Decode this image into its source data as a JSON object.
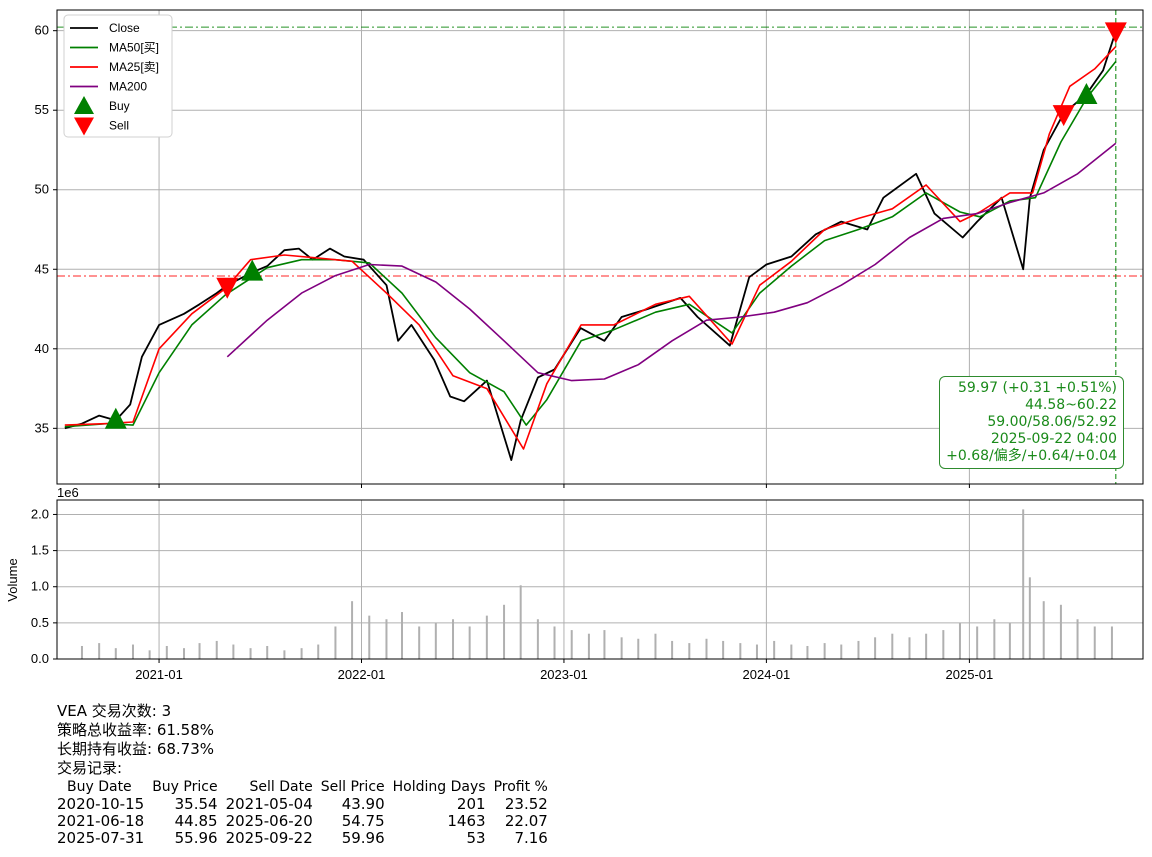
{
  "ticker_label": "VEA 交易次数: 3",
  "summary": {
    "strategy_return": "策略总收益率: 61.58%",
    "buy_hold_return": "长期持有收益: 68.73%",
    "trades_title": "交易记录:"
  },
  "trades_table": {
    "headers": [
      "Buy Date",
      "Buy Price",
      "Sell Date",
      "Sell Price",
      "Holding Days",
      "Profit %"
    ],
    "rows": [
      [
        "2020-10-15",
        "35.54",
        "2021-05-04",
        "43.90",
        "201",
        "23.52"
      ],
      [
        "2021-06-18",
        "44.85",
        "2025-06-20",
        "54.75",
        "1463",
        "22.07"
      ],
      [
        "2025-07-31",
        "55.96",
        "2025-09-22",
        "59.96",
        "53",
        "7.16"
      ]
    ]
  },
  "infobox": {
    "line1": "59.97 (+0.31 +0.51%)",
    "line2": "44.58~60.22",
    "line3": "59.00/58.06/52.92",
    "line4": "2025-09-22 04:00",
    "line5": "+0.68/偏多/+0.64/+0.04"
  },
  "colors": {
    "close": "#000000",
    "ma50": "#008000",
    "ma25": "#ff0000",
    "ma200": "#800080",
    "buy": "#008000",
    "sell": "#ff0000",
    "volume": "#b0b0b0",
    "grid": "#b0b0b0",
    "infobox": "#1a8a1a"
  },
  "chart_data": [
    {
      "type": "line",
      "x_axis": "date",
      "xlim": [
        "2020-07-01",
        "2025-11-10"
      ],
      "ylim": [
        31.5,
        61.3
      ],
      "yticks": [
        35,
        40,
        45,
        50,
        55,
        60
      ],
      "xtick_labels": [
        "2021-01",
        "2022-01",
        "2023-01",
        "2024-01",
        "2025-01"
      ],
      "grid": true,
      "legend": "top-left",
      "hlines": [
        {
          "y": 60.22,
          "color": "#008000",
          "style": "dashdot"
        },
        {
          "y": 44.58,
          "color": "#ff0000",
          "style": "dashdot"
        }
      ],
      "vline": {
        "x": "2025-09-22",
        "color": "#008000",
        "style": "dashed"
      },
      "series": [
        {
          "name": "Close",
          "x": [
            "2020-07-15",
            "2020-08-15",
            "2020-09-15",
            "2020-10-15",
            "2020-11-10",
            "2020-12-01",
            "2021-01-01",
            "2021-02-15",
            "2021-03-15",
            "2021-04-15",
            "2021-05-04",
            "2021-06-18",
            "2021-07-15",
            "2021-08-15",
            "2021-09-10",
            "2021-10-05",
            "2021-11-05",
            "2021-12-01",
            "2022-01-05",
            "2022-02-15",
            "2022-03-08",
            "2022-04-01",
            "2022-05-12",
            "2022-06-10",
            "2022-07-05",
            "2022-08-15",
            "2022-09-28",
            "2022-10-15",
            "2022-11-15",
            "2022-12-15",
            "2023-01-31",
            "2023-03-15",
            "2023-04-15",
            "2023-06-01",
            "2023-07-30",
            "2023-08-30",
            "2023-10-27",
            "2023-12-01",
            "2024-01-01",
            "2024-02-15",
            "2024-03-30",
            "2024-05-15",
            "2024-07-01",
            "2024-07-30",
            "2024-09-27",
            "2024-10-30",
            "2024-12-20",
            "2025-01-15",
            "2025-02-28",
            "2025-04-08",
            "2025-04-20",
            "2025-05-15",
            "2025-06-20",
            "2025-07-31",
            "2025-08-30",
            "2025-09-22"
          ],
          "values": [
            35.0,
            35.3,
            35.8,
            35.5,
            36.5,
            39.5,
            41.5,
            42.2,
            42.8,
            43.5,
            44.0,
            44.8,
            45.2,
            46.2,
            46.3,
            45.6,
            46.3,
            45.8,
            45.6,
            44.0,
            40.5,
            41.5,
            39.3,
            37.0,
            36.7,
            38.0,
            33.0,
            35.5,
            38.2,
            38.7,
            41.3,
            40.5,
            42.0,
            42.5,
            43.2,
            42.0,
            40.2,
            44.5,
            45.3,
            45.8,
            47.2,
            48.0,
            47.5,
            49.5,
            51.0,
            48.5,
            47.0,
            48.0,
            49.5,
            45.0,
            49.5,
            52.5,
            54.8,
            56.0,
            57.5,
            59.97
          ]
        },
        {
          "name": "MA50[买]",
          "x": [
            "2020-07-15",
            "2020-10-01",
            "2020-11-15",
            "2021-01-01",
            "2021-03-01",
            "2021-05-01",
            "2021-07-15",
            "2021-09-15",
            "2021-11-15",
            "2022-01-15",
            "2022-03-15",
            "2022-05-15",
            "2022-07-15",
            "2022-09-15",
            "2022-10-25",
            "2022-12-01",
            "2023-02-01",
            "2023-04-01",
            "2023-06-15",
            "2023-08-15",
            "2023-10-31",
            "2023-12-20",
            "2024-02-15",
            "2024-04-15",
            "2024-06-15",
            "2024-08-15",
            "2024-10-15",
            "2024-12-15",
            "2025-01-20",
            "2025-03-15",
            "2025-04-30",
            "2025-06-15",
            "2025-08-01",
            "2025-09-22"
          ],
          "values": [
            35.1,
            35.3,
            35.2,
            38.5,
            41.5,
            43.4,
            45.1,
            45.6,
            45.6,
            45.4,
            43.5,
            40.7,
            38.5,
            37.3,
            35.2,
            36.8,
            40.5,
            41.2,
            42.3,
            42.8,
            41.0,
            43.5,
            45.2,
            46.8,
            47.5,
            48.3,
            49.8,
            48.6,
            48.3,
            49.3,
            49.5,
            53.0,
            55.8,
            58.06
          ]
        },
        {
          "name": "MA25[卖]",
          "x": [
            "2020-07-15",
            "2020-10-01",
            "2020-11-15",
            "2021-01-01",
            "2021-03-01",
            "2021-05-01",
            "2021-06-15",
            "2021-08-15",
            "2021-10-15",
            "2021-12-15",
            "2022-02-15",
            "2022-04-15",
            "2022-06-15",
            "2022-08-15",
            "2022-10-20",
            "2022-12-01",
            "2023-02-01",
            "2023-04-01",
            "2023-06-15",
            "2023-08-15",
            "2023-10-31",
            "2023-12-20",
            "2024-02-15",
            "2024-04-15",
            "2024-06-15",
            "2024-08-15",
            "2024-10-15",
            "2024-12-15",
            "2025-01-20",
            "2025-03-15",
            "2025-04-25",
            "2025-05-25",
            "2025-07-01",
            "2025-08-15",
            "2025-09-22"
          ],
          "values": [
            35.2,
            35.3,
            35.4,
            40.0,
            42.2,
            43.8,
            45.6,
            45.9,
            45.7,
            45.5,
            43.5,
            41.5,
            38.3,
            37.5,
            33.7,
            37.8,
            41.5,
            41.5,
            42.8,
            43.3,
            40.3,
            44.0,
            45.5,
            47.5,
            48.2,
            48.8,
            50.3,
            48.0,
            48.6,
            49.8,
            49.8,
            53.5,
            56.5,
            57.6,
            59.0
          ]
        },
        {
          "name": "MA200",
          "x": [
            "2021-05-04",
            "2021-07-15",
            "2021-09-15",
            "2021-11-15",
            "2022-01-15",
            "2022-03-15",
            "2022-05-15",
            "2022-07-15",
            "2022-09-15",
            "2022-11-15",
            "2023-01-15",
            "2023-03-15",
            "2023-05-15",
            "2023-07-15",
            "2023-09-15",
            "2023-11-15",
            "2024-01-15",
            "2024-03-15",
            "2024-05-15",
            "2024-07-15",
            "2024-09-15",
            "2024-11-15",
            "2025-01-15",
            "2025-03-15",
            "2025-05-15",
            "2025-07-15",
            "2025-09-22"
          ],
          "values": [
            39.5,
            41.8,
            43.5,
            44.6,
            45.3,
            45.2,
            44.2,
            42.5,
            40.5,
            38.5,
            38.0,
            38.1,
            39.0,
            40.5,
            41.8,
            42.0,
            42.3,
            42.9,
            44.0,
            45.3,
            47.0,
            48.2,
            48.5,
            49.2,
            49.8,
            51.0,
            52.92
          ]
        }
      ],
      "markers": {
        "buy": [
          {
            "x": "2020-10-15",
            "y": 35.54
          },
          {
            "x": "2021-06-18",
            "y": 44.85
          },
          {
            "x": "2025-07-31",
            "y": 55.96
          }
        ],
        "sell": [
          {
            "x": "2021-05-04",
            "y": 43.9
          },
          {
            "x": "2025-06-20",
            "y": 54.75
          },
          {
            "x": "2025-09-22",
            "y": 59.96
          }
        ]
      },
      "legend_entries": [
        "Close",
        "MA50[买]",
        "MA25[卖]",
        "MA200",
        "Buy",
        "Sell"
      ]
    },
    {
      "type": "bar",
      "ylabel": "Volume",
      "scale_label": "1e6",
      "ylim": [
        0,
        2.2
      ],
      "yticks": [
        "0.0",
        "0.5",
        "1.0",
        "1.5",
        "2.0"
      ],
      "grid": true,
      "x": [
        "2020-08-15",
        "2020-09-15",
        "2020-10-15",
        "2020-11-15",
        "2020-12-15",
        "2021-01-15",
        "2021-02-15",
        "2021-03-15",
        "2021-04-15",
        "2021-05-15",
        "2021-06-15",
        "2021-07-15",
        "2021-08-15",
        "2021-09-15",
        "2021-10-15",
        "2021-11-15",
        "2021-12-15",
        "2022-01-15",
        "2022-02-15",
        "2022-03-15",
        "2022-04-15",
        "2022-05-15",
        "2022-06-15",
        "2022-07-15",
        "2022-08-15",
        "2022-09-15",
        "2022-10-15",
        "2022-11-15",
        "2022-12-15",
        "2023-01-15",
        "2023-02-15",
        "2023-03-15",
        "2023-04-15",
        "2023-05-15",
        "2023-06-15",
        "2023-07-15",
        "2023-08-15",
        "2023-09-15",
        "2023-10-15",
        "2023-11-15",
        "2023-12-15",
        "2024-01-15",
        "2024-02-15",
        "2024-03-15",
        "2024-04-15",
        "2024-05-15",
        "2024-06-15",
        "2024-07-15",
        "2024-08-15",
        "2024-09-15",
        "2024-10-15",
        "2024-11-15",
        "2024-12-15",
        "2025-01-15",
        "2025-02-15",
        "2025-03-15",
        "2025-04-08",
        "2025-04-20",
        "2025-05-15",
        "2025-06-15",
        "2025-07-15",
        "2025-08-15",
        "2025-09-15"
      ],
      "values": [
        0.18,
        0.22,
        0.15,
        0.2,
        0.12,
        0.18,
        0.15,
        0.22,
        0.25,
        0.2,
        0.15,
        0.18,
        0.12,
        0.15,
        0.2,
        0.45,
        0.8,
        0.6,
        0.55,
        0.65,
        0.45,
        0.5,
        0.55,
        0.45,
        0.6,
        0.75,
        1.02,
        0.55,
        0.45,
        0.4,
        0.35,
        0.4,
        0.3,
        0.28,
        0.35,
        0.25,
        0.22,
        0.28,
        0.25,
        0.22,
        0.2,
        0.25,
        0.2,
        0.18,
        0.22,
        0.2,
        0.25,
        0.3,
        0.35,
        0.3,
        0.35,
        0.4,
        0.5,
        0.45,
        0.55,
        0.5,
        2.07,
        1.13,
        0.8,
        0.75,
        0.55,
        0.45,
        0.45
      ]
    }
  ]
}
